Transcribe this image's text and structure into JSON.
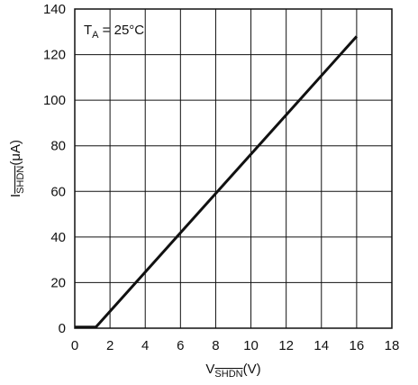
{
  "chart_data": {
    "type": "line",
    "title": "",
    "xlabel": {
      "main": "V",
      "sub": "SHDN",
      "unit": "(V)"
    },
    "ylabel": {
      "main": "I",
      "sub": "SHDN",
      "unit": "(μA)"
    },
    "xlim": [
      0,
      18
    ],
    "ylim": [
      0,
      140
    ],
    "xticks": [
      0,
      2,
      4,
      6,
      8,
      10,
      12,
      14,
      16,
      18
    ],
    "yticks": [
      0,
      20,
      40,
      60,
      80,
      100,
      120,
      140
    ],
    "grid": true,
    "annotation": {
      "main": "T",
      "sub": "A",
      "rest": " = 25°C"
    },
    "series": [
      {
        "x": [
          0,
          1.0,
          1.2,
          16
        ],
        "y": [
          0.5,
          0.5,
          0.5,
          128
        ]
      }
    ]
  }
}
